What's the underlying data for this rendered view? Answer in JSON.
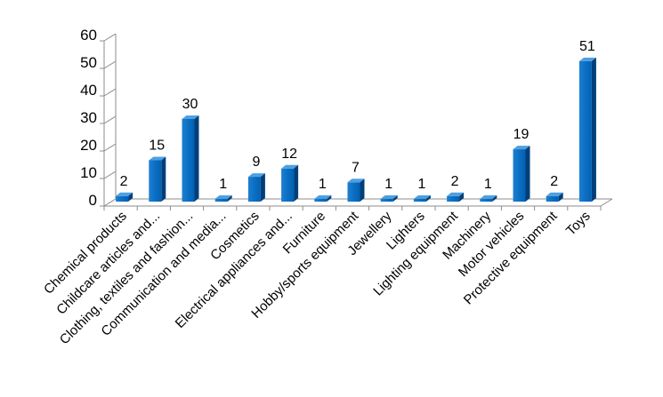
{
  "chart_data": {
    "type": "bar",
    "title": "",
    "xlabel": "",
    "ylabel": "",
    "ylim": [
      0,
      60
    ],
    "yticks": [
      0,
      10,
      20,
      30,
      40,
      50,
      60
    ],
    "grid": false,
    "legend": "none",
    "bar_color": "#0070C0",
    "categories": [
      "Chemical products",
      "Childcare articles and...",
      "Clothing, textiles and fashion...",
      "Communication and media...",
      "Cosmetics",
      "Electrical appliances and...",
      "Furniture",
      "Hobby/sports equipment",
      "Jewellery",
      "Lighters",
      "Lighting equipment",
      "Machinery",
      "Motor vehicles",
      "Protective equipment",
      "Toys"
    ],
    "values": [
      2,
      15,
      30,
      1,
      9,
      12,
      1,
      7,
      1,
      1,
      2,
      1,
      19,
      2,
      51
    ]
  }
}
